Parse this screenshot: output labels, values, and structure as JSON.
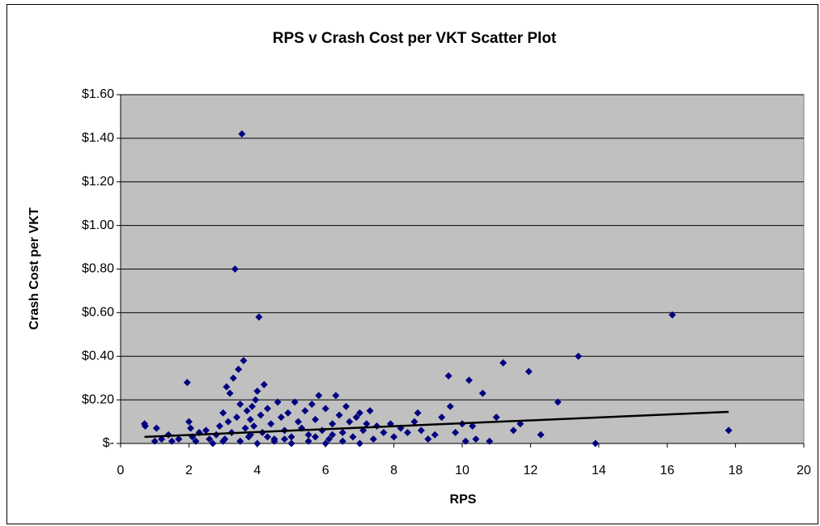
{
  "chart_data": {
    "type": "scatter",
    "title": "RPS v Crash Cost per VKT Scatter Plot",
    "xlabel": "RPS",
    "ylabel": "Crash Cost per VKT",
    "color": "#000080",
    "grid": true,
    "xlim": [
      0,
      20
    ],
    "xticks": [
      0,
      2,
      4,
      6,
      8,
      10,
      12,
      14,
      16,
      18,
      20
    ],
    "ylim": [
      0,
      1.6
    ],
    "yticks": [
      {
        "value": 0,
        "label": "$-"
      },
      {
        "value": 0.2,
        "label": "$0.20"
      },
      {
        "value": 0.4,
        "label": "$0.40"
      },
      {
        "value": 0.6,
        "label": "$0.60"
      },
      {
        "value": 0.8,
        "label": "$0.80"
      },
      {
        "value": 1.0,
        "label": "$1.00"
      },
      {
        "value": 1.2,
        "label": "$1.20"
      },
      {
        "value": 1.4,
        "label": "$1.40"
      },
      {
        "value": 1.6,
        "label": "$1.60"
      }
    ],
    "x": [
      0.7,
      0.72,
      1.0,
      1.05,
      1.2,
      1.4,
      1.5,
      1.7,
      1.95,
      2.0,
      2.05,
      2.1,
      2.2,
      2.3,
      2.5,
      2.6,
      2.8,
      2.9,
      3.0,
      3.05,
      3.1,
      3.15,
      3.2,
      3.25,
      3.3,
      3.35,
      3.4,
      3.45,
      3.5,
      3.55,
      3.6,
      3.65,
      3.7,
      3.75,
      3.8,
      3.85,
      3.9,
      3.95,
      4.0,
      4.05,
      4.1,
      4.15,
      4.2,
      4.3,
      4.4,
      4.5,
      4.6,
      4.7,
      4.8,
      4.9,
      5.0,
      5.1,
      5.2,
      5.3,
      5.4,
      5.5,
      5.6,
      5.7,
      5.8,
      5.9,
      6.0,
      6.1,
      6.2,
      6.3,
      6.4,
      6.5,
      6.6,
      6.7,
      6.8,
      6.9,
      7.0,
      7.1,
      7.2,
      7.3,
      7.4,
      7.5,
      7.7,
      7.9,
      8.0,
      8.2,
      8.4,
      8.6,
      8.7,
      8.8,
      9.0,
      9.2,
      9.4,
      9.6,
      9.65,
      9.8,
      10.0,
      10.1,
      10.2,
      10.3,
      10.4,
      10.6,
      10.8,
      11.0,
      11.2,
      11.5,
      11.7,
      11.95,
      12.3,
      12.8,
      13.4,
      13.9,
      16.15,
      17.8,
      3.5,
      4.0,
      4.5,
      5.0,
      5.5,
      6.0,
      6.5,
      7.0,
      3.0,
      2.7,
      4.8,
      5.7,
      6.2,
      3.8,
      4.3
    ],
    "values": [
      0.09,
      0.08,
      0.01,
      0.07,
      0.02,
      0.04,
      0.01,
      0.02,
      0.28,
      0.1,
      0.07,
      0.03,
      0.01,
      0.05,
      0.06,
      0.02,
      0.04,
      0.08,
      0.14,
      0.02,
      0.26,
      0.1,
      0.23,
      0.05,
      0.3,
      0.8,
      0.12,
      0.34,
      0.18,
      1.42,
      0.38,
      0.07,
      0.15,
      0.03,
      0.11,
      0.17,
      0.08,
      0.2,
      0.24,
      0.58,
      0.13,
      0.05,
      0.27,
      0.16,
      0.09,
      0.02,
      0.19,
      0.12,
      0.06,
      0.14,
      0.03,
      0.19,
      0.1,
      0.07,
      0.15,
      0.04,
      0.18,
      0.11,
      0.22,
      0.06,
      0.16,
      0.02,
      0.09,
      0.22,
      0.13,
      0.05,
      0.17,
      0.1,
      0.03,
      0.12,
      0.14,
      0.06,
      0.09,
      0.15,
      0.02,
      0.08,
      0.05,
      0.09,
      0.03,
      0.07,
      0.05,
      0.1,
      0.14,
      0.06,
      0.02,
      0.04,
      0.12,
      0.31,
      0.17,
      0.05,
      0.09,
      0.01,
      0.29,
      0.08,
      0.02,
      0.23,
      0.01,
      0.12,
      0.37,
      0.06,
      0.09,
      0.33,
      0.04,
      0.19,
      0.4,
      0.0,
      0.59,
      0.06,
      0.01,
      0.0,
      0.01,
      0.0,
      0.01,
      0.0,
      0.01,
      0.0,
      0.01,
      0.0,
      0.02,
      0.03,
      0.04,
      0.04,
      0.03
    ],
    "trendline": {
      "x": [
        0.7,
        17.8
      ],
      "values": [
        0.03,
        0.145
      ],
      "color": "#000000"
    }
  }
}
